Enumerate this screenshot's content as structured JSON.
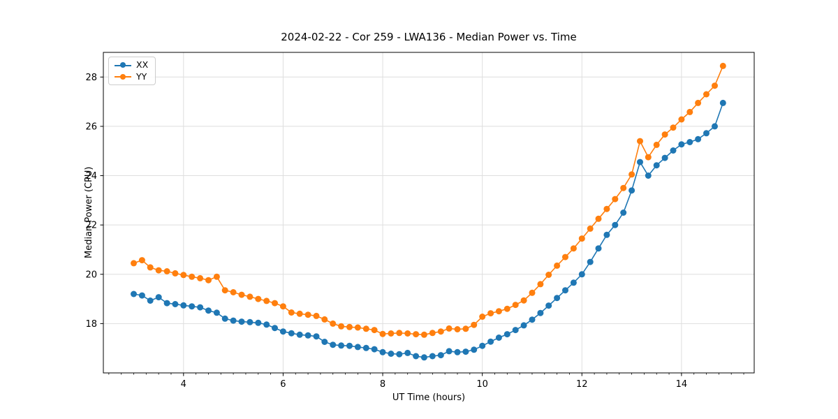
{
  "chart_data": {
    "type": "line",
    "title": "2024-02-22 - Cor 259 - LWA136 - Median Power vs. Time",
    "xlabel": "UT Time (hours)",
    "ylabel": "Median Power (CPU)",
    "xlim": [
      2.39,
      15.46
    ],
    "ylim": [
      16.0,
      29.0
    ],
    "xticks": [
      4,
      6,
      8,
      10,
      12,
      14
    ],
    "xtick_minor_step": 0.25,
    "yticks": [
      18,
      20,
      22,
      24,
      26,
      28
    ],
    "grid": true,
    "grid_color": "#dedede",
    "spine_color": "#000000",
    "background_color": "#ffffff",
    "legend_position": "upper-left",
    "x": [
      3.0,
      3.167,
      3.333,
      3.5,
      3.667,
      3.833,
      4.0,
      4.167,
      4.333,
      4.5,
      4.667,
      4.833,
      5.0,
      5.167,
      5.333,
      5.5,
      5.667,
      5.833,
      6.0,
      6.167,
      6.333,
      6.5,
      6.667,
      6.833,
      7.0,
      7.167,
      7.333,
      7.5,
      7.667,
      7.833,
      8.0,
      8.167,
      8.333,
      8.5,
      8.667,
      8.833,
      9.0,
      9.167,
      9.333,
      9.5,
      9.667,
      9.833,
      10.0,
      10.167,
      10.333,
      10.5,
      10.667,
      10.833,
      11.0,
      11.167,
      11.333,
      11.5,
      11.667,
      11.833,
      12.0,
      12.167,
      12.333,
      12.5,
      12.667,
      12.833,
      13.0,
      13.167,
      13.333,
      13.5,
      13.667,
      13.833,
      14.0,
      14.167,
      14.333,
      14.5,
      14.667,
      14.833
    ],
    "series": [
      {
        "name": "XX",
        "color": "#1f77b4",
        "values": [
          19.2,
          19.14,
          18.93,
          19.07,
          18.83,
          18.79,
          18.74,
          18.7,
          18.66,
          18.53,
          18.44,
          18.2,
          18.12,
          18.08,
          18.06,
          18.03,
          17.96,
          17.82,
          17.68,
          17.61,
          17.55,
          17.52,
          17.48,
          17.26,
          17.14,
          17.11,
          17.1,
          17.05,
          17.01,
          16.96,
          16.84,
          16.78,
          16.76,
          16.81,
          16.68,
          16.63,
          16.68,
          16.72,
          16.88,
          16.84,
          16.86,
          16.94,
          17.1,
          17.27,
          17.43,
          17.57,
          17.74,
          17.93,
          18.16,
          18.43,
          18.73,
          19.04,
          19.35,
          19.66,
          20.0,
          20.5,
          21.05,
          21.6,
          22.0,
          22.5,
          23.4,
          24.55,
          24.0,
          24.42,
          24.72,
          25.02,
          25.27,
          25.36,
          25.48,
          25.72,
          26.0,
          26.95
        ]
      },
      {
        "name": "YY",
        "color": "#ff7f0e",
        "values": [
          20.45,
          20.57,
          20.28,
          20.16,
          20.12,
          20.04,
          19.97,
          19.9,
          19.84,
          19.76,
          19.9,
          19.35,
          19.27,
          19.17,
          19.09,
          19.0,
          18.92,
          18.83,
          18.7,
          18.45,
          18.4,
          18.36,
          18.31,
          18.17,
          18.0,
          17.89,
          17.86,
          17.84,
          17.79,
          17.74,
          17.58,
          17.6,
          17.62,
          17.6,
          17.57,
          17.55,
          17.62,
          17.68,
          17.8,
          17.77,
          17.79,
          17.95,
          18.28,
          18.42,
          18.5,
          18.6,
          18.76,
          18.94,
          19.25,
          19.6,
          19.98,
          20.35,
          20.7,
          21.05,
          21.45,
          21.85,
          22.25,
          22.65,
          23.05,
          23.5,
          24.05,
          25.4,
          24.75,
          25.25,
          25.67,
          25.95,
          26.28,
          26.58,
          26.95,
          27.3,
          27.65,
          28.45
        ]
      }
    ]
  }
}
